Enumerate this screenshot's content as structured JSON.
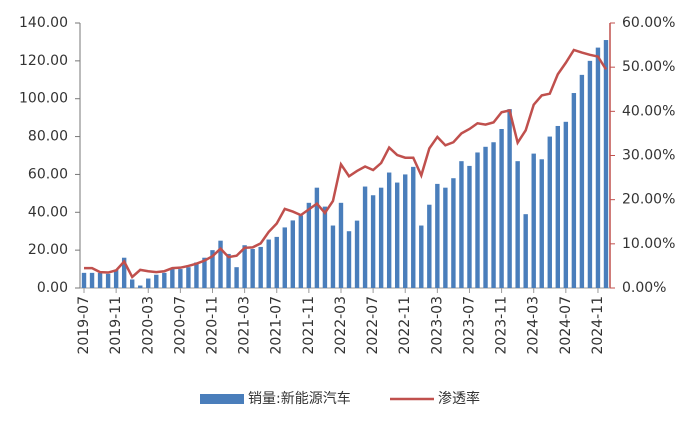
{
  "chart_data": {
    "type": "bar+line",
    "categories": [
      "2019-07",
      null,
      null,
      null,
      "2019-11",
      null,
      null,
      null,
      "2020-03",
      null,
      null,
      null,
      "2020-07",
      null,
      null,
      null,
      "2020-11",
      null,
      null,
      null,
      "2021-03",
      null,
      null,
      null,
      "2021-07",
      null,
      null,
      null,
      "2021-11",
      null,
      null,
      null,
      "2022-03",
      null,
      null,
      null,
      "2022-07",
      null,
      null,
      null,
      "2022-11",
      null,
      null,
      null,
      "2023-03",
      null,
      null,
      null,
      "2023-07",
      null,
      null,
      null,
      "2023-11",
      null,
      null,
      null,
      "2024-03",
      null,
      null,
      null,
      "2024-07",
      null,
      null,
      null,
      "2024-11",
      null
    ],
    "series": [
      {
        "name": "销量:新能源汽车",
        "type": "bar",
        "color": "#4a7ebb",
        "values": [
          8,
          8,
          8,
          7.5,
          9.5,
          16,
          4.5,
          1.3,
          5,
          7,
          8,
          10,
          10,
          11,
          13.5,
          16,
          20,
          25,
          18,
          11,
          22.6,
          20.6,
          21.7,
          25.6,
          27,
          32,
          35.7,
          38.3,
          45,
          53,
          43,
          33,
          45,
          30,
          35.6,
          53.6,
          49,
          53,
          61,
          55.7,
          60,
          64,
          33,
          44,
          55,
          53,
          58,
          67,
          64.5,
          71.6,
          74.6,
          77,
          84,
          94.5,
          67,
          39,
          71,
          68,
          80,
          85.6,
          87.8,
          103,
          112.6,
          120,
          127,
          131
        ]
      },
      {
        "name": "渗透率",
        "type": "line",
        "axis": "y2",
        "color": "#c0504d",
        "values": [
          4.5,
          4.5,
          3.6,
          3.5,
          4,
          6,
          2.5,
          4.1,
          3.8,
          3.6,
          3.8,
          4.5,
          4.6,
          5,
          5.5,
          6.2,
          7.2,
          8.9,
          7,
          7.3,
          9.1,
          9.2,
          10.1,
          12.7,
          14.6,
          17.9,
          17.3,
          16.5,
          17.8,
          19.1,
          17,
          19.7,
          28,
          25.3,
          26.5,
          27.5,
          26.7,
          28.3,
          31.8,
          30.1,
          29.5,
          29.5,
          25.5,
          31.6,
          34.2,
          32.3,
          33,
          35,
          36,
          37.3,
          37,
          37.5,
          39.8,
          40.2,
          32.9,
          35.7,
          41.5,
          43.6,
          44,
          48.4,
          51,
          53.9,
          53.3,
          52.8,
          52.4,
          49.5
        ]
      }
    ],
    "ylim": [
      0,
      140
    ],
    "yticks": [
      {
        "value": 0,
        "label": "0.00"
      },
      {
        "value": 20,
        "label": "20.00"
      },
      {
        "value": 40,
        "label": "40.00"
      },
      {
        "value": 60,
        "label": "60.00"
      },
      {
        "value": 80,
        "label": "80.00"
      },
      {
        "value": 100,
        "label": "100.00"
      },
      {
        "value": 120,
        "label": "120.00"
      },
      {
        "value": 140,
        "label": "140.00"
      }
    ],
    "y2lim": [
      0,
      60
    ],
    "y2ticks": [
      {
        "value": 0,
        "label": "0.00%"
      },
      {
        "value": 10,
        "label": "10.00%"
      },
      {
        "value": 20,
        "label": "20.00%"
      },
      {
        "value": 30,
        "label": "30.00%"
      },
      {
        "value": 40,
        "label": "40.00%"
      },
      {
        "value": 50,
        "label": "50.00%"
      },
      {
        "value": 60,
        "label": "60.00%"
      }
    ],
    "legend": "bottom"
  }
}
